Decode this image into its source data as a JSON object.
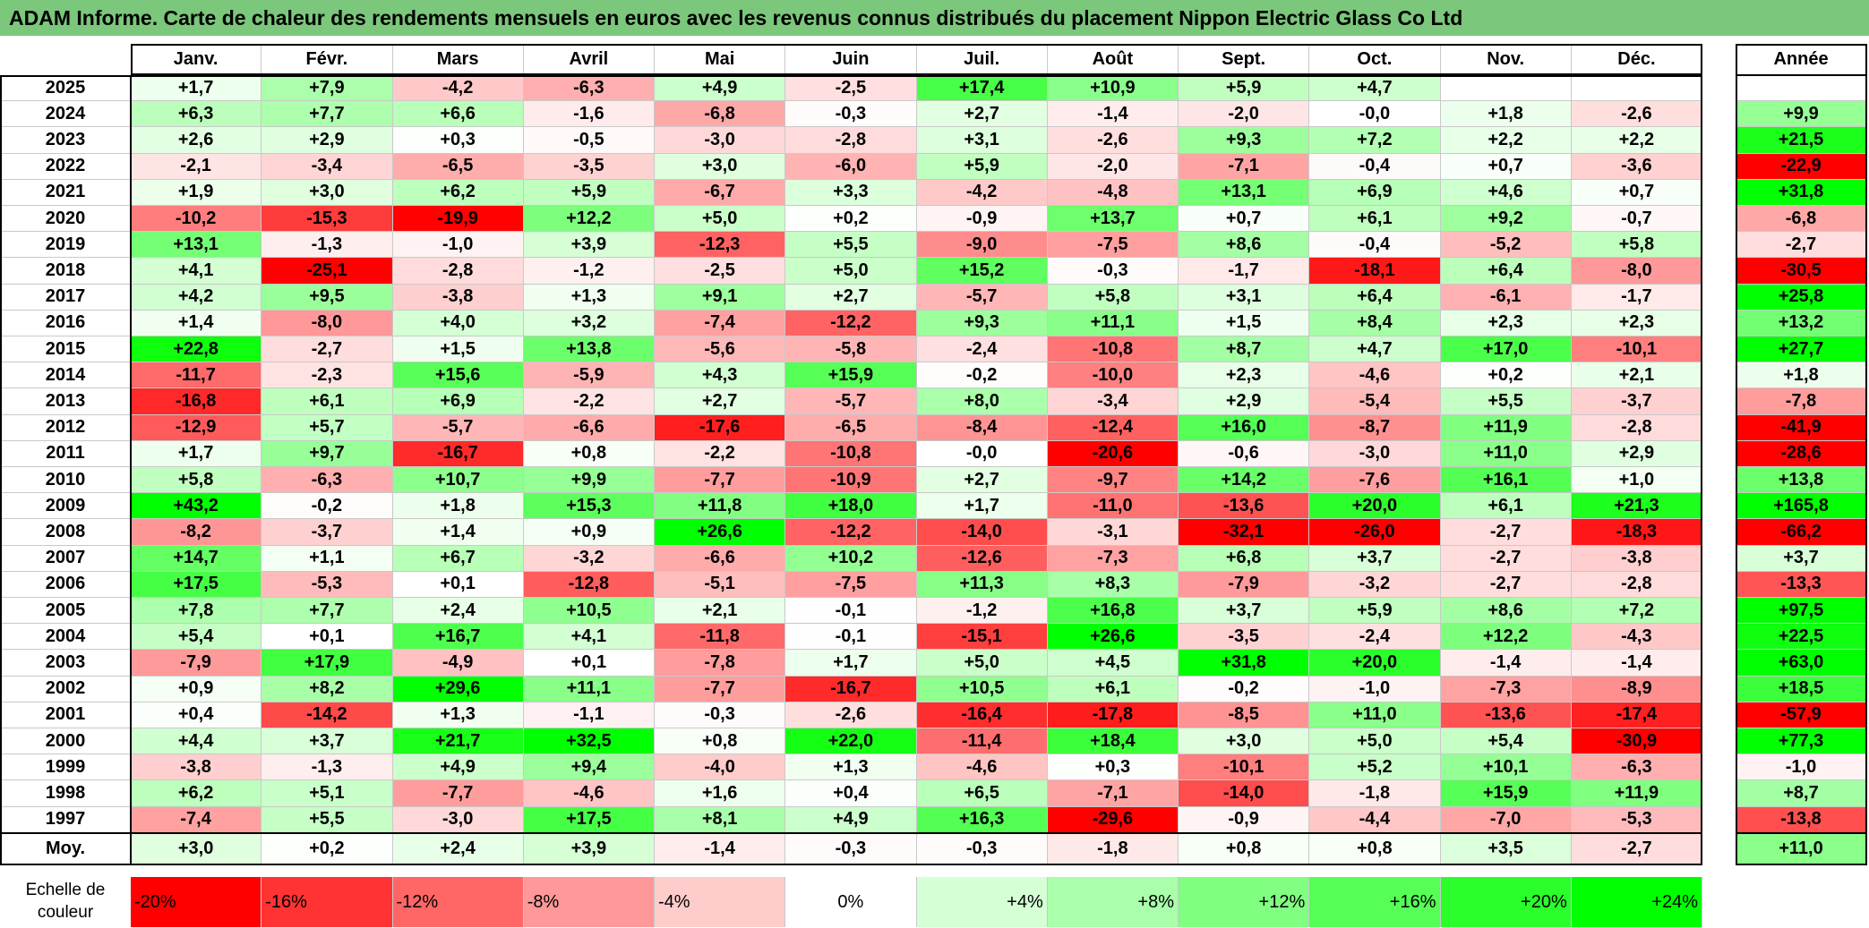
{
  "colors": {
    "title_bar": "#7bc77b",
    "negative": "#ff0000",
    "neutral": "#ffffff",
    "positive": "#00ff00"
  },
  "chart_data": {
    "type": "heatmap",
    "title": "ADAM Informe. Carte de chaleur des rendements mensuels en euros avec les revenus connus distribués du placement Nippon Electric Glass Co Ltd",
    "columns": [
      "Janv.",
      "Févr.",
      "Mars",
      "Avril",
      "Mai",
      "Juin",
      "Juil.",
      "Août",
      "Sept.",
      "Oct.",
      "Nov.",
      "Déc."
    ],
    "total_column": "Année",
    "rows": [
      {
        "label": "2025",
        "values": [
          1.7,
          7.9,
          -4.2,
          -6.3,
          4.9,
          -2.5,
          17.4,
          10.9,
          5.9,
          4.7,
          null,
          null
        ],
        "total": null
      },
      {
        "label": "2024",
        "values": [
          6.3,
          7.7,
          6.6,
          -1.6,
          -6.8,
          -0.3,
          2.7,
          -1.4,
          -2.0,
          -0.0,
          1.8,
          -2.6
        ],
        "total": 9.9
      },
      {
        "label": "2023",
        "values": [
          2.6,
          2.9,
          0.3,
          -0.5,
          -3.0,
          -2.8,
          3.1,
          -2.6,
          9.3,
          7.2,
          2.2,
          2.2
        ],
        "total": 21.5
      },
      {
        "label": "2022",
        "values": [
          -2.1,
          -3.4,
          -6.5,
          -3.5,
          3.0,
          -6.0,
          5.9,
          -2.0,
          -7.1,
          -0.4,
          0.7,
          -3.6
        ],
        "total": -22.9
      },
      {
        "label": "2021",
        "values": [
          1.9,
          3.0,
          6.2,
          5.9,
          -6.7,
          3.3,
          -4.2,
          -4.8,
          13.1,
          6.9,
          4.6,
          0.7
        ],
        "total": 31.8
      },
      {
        "label": "2020",
        "values": [
          -10.2,
          -15.3,
          -19.9,
          12.2,
          5.0,
          0.2,
          -0.9,
          13.7,
          0.7,
          6.1,
          9.2,
          -0.7
        ],
        "total": -6.8
      },
      {
        "label": "2019",
        "values": [
          13.1,
          -1.3,
          -1.0,
          3.9,
          -12.3,
          5.5,
          -9.0,
          -7.5,
          8.6,
          -0.4,
          -5.2,
          5.8
        ],
        "total": -2.7
      },
      {
        "label": "2018",
        "values": [
          4.1,
          -25.1,
          -2.8,
          -1.2,
          -2.5,
          5.0,
          15.2,
          -0.3,
          -1.7,
          -18.1,
          6.4,
          -8.0
        ],
        "total": -30.5
      },
      {
        "label": "2017",
        "values": [
          4.2,
          9.5,
          -3.8,
          1.3,
          9.1,
          2.7,
          -5.7,
          5.8,
          3.1,
          6.4,
          -6.1,
          -1.7
        ],
        "total": 25.8
      },
      {
        "label": "2016",
        "values": [
          1.4,
          -8.0,
          4.0,
          3.2,
          -7.4,
          -12.2,
          9.3,
          11.1,
          1.5,
          8.4,
          2.3,
          2.3
        ],
        "total": 13.2
      },
      {
        "label": "2015",
        "values": [
          22.8,
          -2.7,
          1.5,
          13.8,
          -5.6,
          -5.8,
          -2.4,
          -10.8,
          8.7,
          4.7,
          17.0,
          -10.1
        ],
        "total": 27.7
      },
      {
        "label": "2014",
        "values": [
          -11.7,
          -2.3,
          15.6,
          -5.9,
          4.3,
          15.9,
          -0.2,
          -10.0,
          2.3,
          -4.6,
          0.2,
          2.1
        ],
        "total": 1.8
      },
      {
        "label": "2013",
        "values": [
          -16.8,
          6.1,
          6.9,
          -2.2,
          2.7,
          -5.7,
          8.0,
          -3.4,
          2.9,
          -5.4,
          5.5,
          -3.7
        ],
        "total": -7.8
      },
      {
        "label": "2012",
        "values": [
          -12.9,
          5.7,
          -5.7,
          -6.6,
          -17.6,
          -6.5,
          -8.4,
          -12.4,
          16.0,
          -8.7,
          11.9,
          -2.8
        ],
        "total": -41.9
      },
      {
        "label": "2011",
        "values": [
          1.7,
          9.7,
          -16.7,
          0.8,
          -2.2,
          -10.8,
          -0.0,
          -20.6,
          -0.6,
          -3.0,
          11.0,
          2.9
        ],
        "total": -28.6
      },
      {
        "label": "2010",
        "values": [
          5.8,
          -6.3,
          10.7,
          9.9,
          -7.7,
          -10.9,
          2.7,
          -9.7,
          14.2,
          -7.6,
          16.1,
          1.0
        ],
        "total": 13.8
      },
      {
        "label": "2009",
        "values": [
          43.2,
          -0.2,
          1.8,
          15.3,
          11.8,
          18.0,
          1.7,
          -11.0,
          -13.6,
          20.0,
          6.1,
          21.3
        ],
        "total": 165.8
      },
      {
        "label": "2008",
        "values": [
          -8.2,
          -3.7,
          1.4,
          0.9,
          26.6,
          -12.2,
          -14.0,
          -3.1,
          -32.1,
          -26.0,
          -2.7,
          -18.3
        ],
        "total": -66.2
      },
      {
        "label": "2007",
        "values": [
          14.7,
          1.1,
          6.7,
          -3.2,
          -6.6,
          10.2,
          -12.6,
          -7.3,
          6.8,
          3.7,
          -2.7,
          -3.8
        ],
        "total": 3.7
      },
      {
        "label": "2006",
        "values": [
          17.5,
          -5.3,
          0.1,
          -12.8,
          -5.1,
          -7.5,
          11.3,
          8.3,
          -7.9,
          -3.2,
          -2.7,
          -2.8
        ],
        "total": -13.3
      },
      {
        "label": "2005",
        "values": [
          7.8,
          7.7,
          2.4,
          10.5,
          2.1,
          -0.1,
          -1.2,
          16.8,
          3.7,
          5.9,
          8.6,
          7.2
        ],
        "total": 97.5
      },
      {
        "label": "2004",
        "values": [
          5.4,
          0.1,
          16.7,
          4.1,
          -11.8,
          -0.1,
          -15.1,
          26.6,
          -3.5,
          -2.4,
          12.2,
          -4.3
        ],
        "total": 22.5
      },
      {
        "label": "2003",
        "values": [
          -7.9,
          17.9,
          -4.9,
          0.1,
          -7.8,
          1.7,
          5.0,
          4.5,
          31.8,
          20.0,
          -1.4,
          -1.4
        ],
        "total": 63.0
      },
      {
        "label": "2002",
        "values": [
          0.9,
          8.2,
          29.6,
          11.1,
          -7.7,
          -16.7,
          10.5,
          6.1,
          -0.2,
          -1.0,
          -7.3,
          -8.9
        ],
        "total": 18.5
      },
      {
        "label": "2001",
        "values": [
          0.4,
          -14.2,
          1.3,
          -1.1,
          -0.3,
          -2.6,
          -16.4,
          -17.8,
          -8.5,
          11.0,
          -13.6,
          -17.4
        ],
        "total": -57.9
      },
      {
        "label": "2000",
        "values": [
          4.4,
          3.7,
          21.7,
          32.5,
          0.8,
          22.0,
          -11.4,
          18.4,
          3.0,
          5.0,
          5.4,
          -30.9
        ],
        "total": 77.3
      },
      {
        "label": "1999",
        "values": [
          -3.8,
          -1.3,
          4.9,
          9.4,
          -4.0,
          1.3,
          -4.6,
          0.3,
          -10.1,
          5.2,
          10.1,
          -6.3
        ],
        "total": -1.0
      },
      {
        "label": "1998",
        "values": [
          6.2,
          5.1,
          -7.7,
          -4.6,
          1.6,
          0.4,
          6.5,
          -7.1,
          -14.0,
          -1.8,
          15.9,
          11.9
        ],
        "total": 8.7
      },
      {
        "label": "1997",
        "values": [
          -7.4,
          5.5,
          -3.0,
          17.5,
          8.1,
          4.9,
          16.3,
          -29.6,
          -0.9,
          -4.4,
          -7.0,
          -5.3
        ],
        "total": -13.8
      }
    ],
    "average": {
      "label": "Moy.",
      "values": [
        3.0,
        0.2,
        2.4,
        3.9,
        -1.4,
        -0.3,
        -0.3,
        -1.8,
        0.8,
        0.8,
        3.5,
        -2.7
      ],
      "total": 11.0
    },
    "color_scale": {
      "label": "Echelle de couleur",
      "stops": [
        "-20%",
        "-16%",
        "-12%",
        "-8%",
        "-4%",
        "0%",
        "+4%",
        "+8%",
        "+12%",
        "+16%",
        "+20%",
        "+24%"
      ]
    }
  }
}
